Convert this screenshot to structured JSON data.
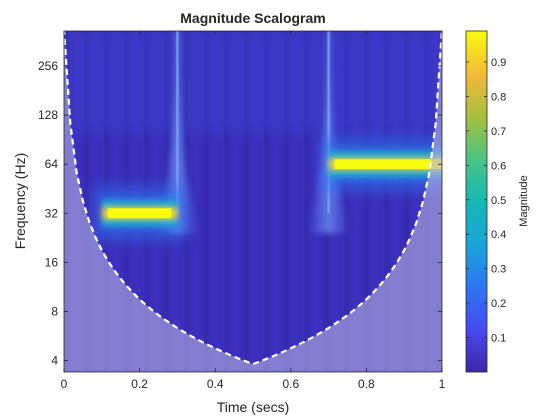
{
  "chart_data": {
    "type": "heatmap",
    "title": "Magnitude Scalogram",
    "xlabel": "Time (secs)",
    "ylabel": "Frequency (Hz)",
    "xlim": [
      0,
      1
    ],
    "ylim_hz": [
      3.4,
      420
    ],
    "y_scale": "log2",
    "x_ticks": [
      0,
      0.2,
      0.4,
      0.6,
      0.8,
      1
    ],
    "x_tick_labels": [
      "0",
      "0.2",
      "0.4",
      "0.6",
      "0.8",
      "1"
    ],
    "y_ticks": [
      4,
      8,
      16,
      32,
      64,
      128,
      256
    ],
    "y_tick_labels": [
      "4",
      "8",
      "16",
      "32",
      "64",
      "128",
      "256"
    ],
    "colorbar": {
      "label": "Magnitude",
      "range": [
        0,
        0.99
      ],
      "ticks": [
        0.1,
        0.2,
        0.3,
        0.4,
        0.5,
        0.6,
        0.7,
        0.8,
        0.9
      ],
      "tick_labels": [
        "0.1",
        "0.2",
        "0.3",
        "0.4",
        "0.5",
        "0.6",
        "0.7",
        "0.8",
        "0.9"
      ],
      "colormap": "parula"
    },
    "features": [
      {
        "t_start": 0.1,
        "t_end": 0.3,
        "freq_hz": 32,
        "magnitude": 0.99
      },
      {
        "t_start": 0.7,
        "t_end": 1.0,
        "freq_hz": 64,
        "magnitude": 0.99
      }
    ],
    "transients_at_secs": [
      0.3,
      0.7
    ],
    "cone_of_influence": {
      "style": "white dashed line",
      "outside_shading": "light lavender"
    }
  },
  "colors": {
    "background_low": "#3a2fb8",
    "mid": "#2a8ce0",
    "high": "#f9fb0e",
    "coi_shade": "#8c84c8",
    "coi_line": "#ffffff"
  }
}
